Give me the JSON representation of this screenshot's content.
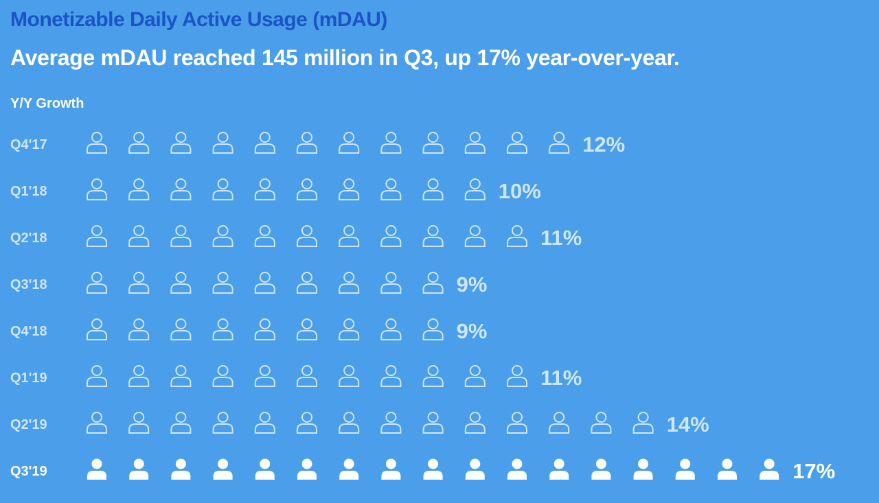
{
  "title": "Monetizable Daily Active Usage (mDAU)",
  "subtitle": "Average mDAU reached 145 million in Q3, up 17% year-over-year.",
  "colors": {
    "background": "#4a9eea",
    "title": "#1b54c4",
    "faded": "#cfe6fb",
    "highlight": "#ffffff"
  },
  "icons": {
    "outline": "person-outline-icon",
    "filled": "person-filled-icon"
  },
  "chart_data": {
    "type": "bar",
    "pictograph": true,
    "unit_per_icon": "1%",
    "legend_title": "Y/Y Growth",
    "categories": [
      "Q4'17",
      "Q1'18",
      "Q2'18",
      "Q3'18",
      "Q4'18",
      "Q1'19",
      "Q2'19",
      "Q3'19"
    ],
    "values": [
      12,
      10,
      11,
      9,
      9,
      11,
      14,
      17
    ],
    "value_labels": [
      "12%",
      "10%",
      "11%",
      "9%",
      "9%",
      "11%",
      "14%",
      "17%"
    ],
    "highlight_category": "Q3'19",
    "grid": false
  }
}
